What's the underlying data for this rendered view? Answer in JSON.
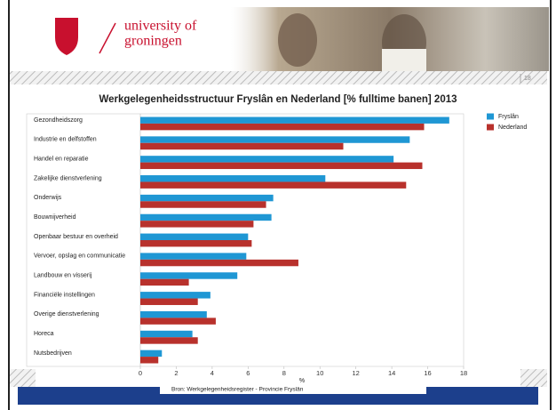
{
  "header": {
    "logo_line1": "university of",
    "logo_line2": "groningen",
    "page_number": "18"
  },
  "chart_data": {
    "type": "bar",
    "orientation": "horizontal",
    "title": "Werkgelegenheidsstructuur Fryslân en Nederland [% fulltime banen] 2013",
    "x_label": "%",
    "categories": [
      "Gezondheidszorg",
      "Industrie en delfstoffen",
      "Handel en reparatie",
      "Zakelijke dienstverlening",
      "Onderwijs",
      "Bouwnijverheid",
      "Openbaar bestuur en overheid",
      "Vervoer, opslag en communicatie",
      "Landbouw en visserij",
      "Financiële instellingen",
      "Overige dienstverlening",
      "Horeca",
      "Nutsbedrijven"
    ],
    "series": [
      {
        "name": "Fryslân",
        "color": "#1f97d4",
        "values": [
          17.2,
          15.0,
          14.1,
          10.3,
          7.4,
          7.3,
          6.0,
          5.9,
          5.4,
          3.9,
          3.7,
          2.9,
          1.2
        ]
      },
      {
        "name": "Nederland",
        "color": "#b8312c",
        "values": [
          15.8,
          11.3,
          15.7,
          14.8,
          7.0,
          6.3,
          6.2,
          8.8,
          2.7,
          3.2,
          4.2,
          3.2,
          1.0
        ]
      }
    ],
    "xlim": [
      0,
      18
    ],
    "xticks": [
      0,
      2,
      4,
      6,
      8,
      10,
      12,
      14,
      16,
      18
    ],
    "grid": false,
    "legend": "right",
    "source": "Bron: Werkgelegenheidsregister - Provincie Fryslân"
  }
}
